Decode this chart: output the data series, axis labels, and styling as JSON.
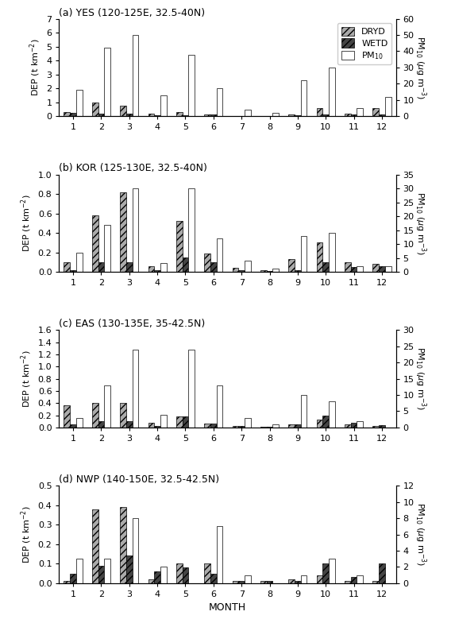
{
  "panels": [
    {
      "title": "(a) YES (120-125E, 32.5-40N)",
      "dryd": [
        0.28,
        0.95,
        0.75,
        0.15,
        0.28,
        0.13,
        0.0,
        0.0,
        0.12,
        0.55,
        0.2,
        0.55
      ],
      "wetd": [
        0.22,
        0.18,
        0.18,
        0.05,
        0.05,
        0.1,
        0.0,
        0.02,
        0.05,
        0.12,
        0.1,
        0.12
      ],
      "pm10": [
        16,
        42,
        50,
        13,
        38,
        17,
        4,
        2,
        22,
        30,
        5,
        12
      ],
      "ylim_dep": [
        0,
        7
      ],
      "ylim_pm": [
        0,
        60
      ],
      "yticks_dep": [
        0,
        1,
        2,
        3,
        4,
        5,
        6,
        7
      ],
      "yticks_pm": [
        0,
        10,
        20,
        30,
        40,
        50,
        60
      ]
    },
    {
      "title": "(b) KOR (125-130E, 32.5-40N)",
      "dryd": [
        0.1,
        0.58,
        0.82,
        0.06,
        0.52,
        0.19,
        0.04,
        0.02,
        0.13,
        0.3,
        0.1,
        0.08
      ],
      "wetd": [
        0.02,
        0.1,
        0.1,
        0.02,
        0.15,
        0.1,
        0.02,
        0.01,
        0.02,
        0.1,
        0.05,
        0.06
      ],
      "pm10": [
        7,
        17,
        30,
        3,
        30,
        12,
        4,
        1,
        13,
        14,
        2,
        2
      ],
      "ylim_dep": [
        0,
        1.0
      ],
      "ylim_pm": [
        0,
        35
      ],
      "yticks_dep": [
        0.0,
        0.2,
        0.4,
        0.6,
        0.8,
        1.0
      ],
      "yticks_pm": [
        0,
        5,
        10,
        15,
        20,
        25,
        30,
        35
      ]
    },
    {
      "title": "(c) EAS (130-135E, 35-42.5N)",
      "dryd": [
        0.37,
        0.4,
        0.4,
        0.08,
        0.18,
        0.07,
        0.03,
        0.01,
        0.05,
        0.13,
        0.05,
        0.03
      ],
      "wetd": [
        0.05,
        0.1,
        0.1,
        0.03,
        0.18,
        0.07,
        0.02,
        0.01,
        0.05,
        0.2,
        0.08,
        0.04
      ],
      "pm10": [
        3,
        13,
        24,
        4,
        24,
        13,
        3,
        1,
        10,
        8,
        2,
        0
      ],
      "ylim_dep": [
        0,
        1.6
      ],
      "ylim_pm": [
        0,
        30
      ],
      "yticks_dep": [
        0.0,
        0.2,
        0.4,
        0.6,
        0.8,
        1.0,
        1.2,
        1.4,
        1.6
      ],
      "yticks_pm": [
        0,
        5,
        10,
        15,
        20,
        25,
        30
      ]
    },
    {
      "title": "(d) NWP (140-150E, 32.5-42.5N)",
      "dryd": [
        0.01,
        0.38,
        0.39,
        0.02,
        0.1,
        0.1,
        0.01,
        0.01,
        0.02,
        0.04,
        0.01,
        0.01
      ],
      "wetd": [
        0.05,
        0.09,
        0.14,
        0.06,
        0.08,
        0.05,
        0.01,
        0.01,
        0.01,
        0.1,
        0.03,
        0.1
      ],
      "pm10": [
        3,
        3,
        8,
        2,
        0,
        7,
        1,
        0,
        1,
        3,
        1,
        0
      ],
      "ylim_dep": [
        0,
        0.5
      ],
      "ylim_pm": [
        0,
        12
      ],
      "yticks_dep": [
        0.0,
        0.1,
        0.2,
        0.3,
        0.4,
        0.5
      ],
      "yticks_pm": [
        0,
        2,
        4,
        6,
        8,
        10,
        12
      ]
    }
  ],
  "months": [
    1,
    2,
    3,
    4,
    5,
    6,
    7,
    8,
    9,
    10,
    11,
    12
  ],
  "bar_width": 0.22,
  "dryd_hatch": "////",
  "wetd_hatch": "////",
  "pm10_color": "#ffffff",
  "pm10_edgecolor": "#000000",
  "xlabel": "MONTH"
}
